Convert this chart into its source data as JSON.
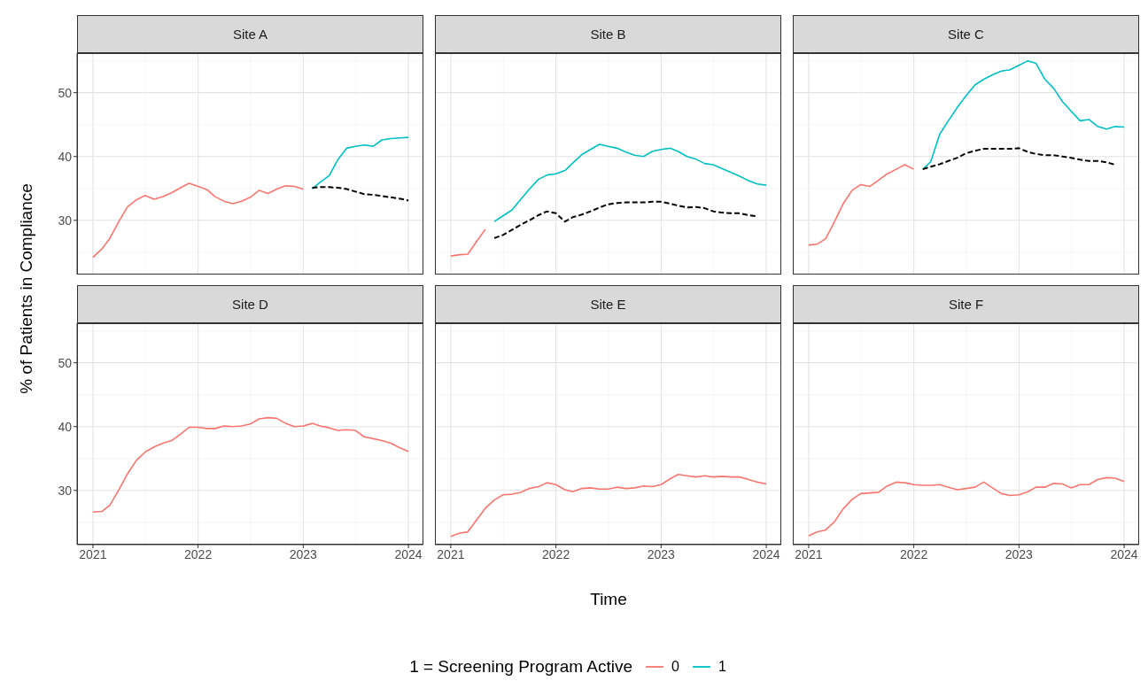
{
  "chart_data": [
    {
      "type": "line",
      "title": "Site A",
      "ylabel": "% of Patients in Compliance",
      "legend_title": "1 = Screening Program Active",
      "legend": "bottom",
      "grid": true,
      "tick_labels": "y",
      "xlim": [
        "2020-11-07",
        "2024-02-22"
      ],
      "xticks": [
        "2021",
        "2022",
        "2023",
        "2024"
      ],
      "ylim": [
        21.5,
        56.2
      ],
      "yticks": [
        30,
        40,
        50
      ],
      "series": [
        {
          "name": "0",
          "color": "#f8766d",
          "x": [
            "2021-01",
            "2021-02",
            "2021-03",
            "2021-04",
            "2021-05",
            "2021-06",
            "2021-07",
            "2021-08",
            "2021-09",
            "2021-10",
            "2021-11",
            "2021-12",
            "2022-01",
            "2022-02",
            "2022-03",
            "2022-04",
            "2022-05",
            "2022-06",
            "2022-07",
            "2022-08",
            "2022-09",
            "2022-10",
            "2022-11",
            "2022-12",
            "2023-01"
          ],
          "values": [
            24.2,
            25.5,
            27.2,
            29.8,
            32.1,
            33.2,
            33.9,
            33.3,
            33.7,
            34.3,
            35.1,
            35.8,
            35.3,
            34.8,
            33.7,
            33.0,
            32.6,
            33.0,
            33.6,
            34.7,
            34.2,
            34.9,
            35.4,
            35.3,
            34.9
          ]
        },
        {
          "name": "1",
          "color": "#00bfc4",
          "x": [
            "2023-02",
            "2023-03",
            "2023-04",
            "2023-05",
            "2023-06",
            "2023-07",
            "2023-08",
            "2023-09",
            "2023-10",
            "2023-11",
            "2023-12",
            "2024-01"
          ],
          "values": [
            34.9,
            36.0,
            37.0,
            39.5,
            41.3,
            41.6,
            41.8,
            41.6,
            42.6,
            42.8,
            42.9,
            43.0
          ]
        },
        {
          "color": "#000000",
          "line_style": "dashed",
          "x": [
            "2023-02",
            "2023-03",
            "2023-04",
            "2023-05",
            "2023-06",
            "2023-07",
            "2023-08",
            "2023-09",
            "2023-10",
            "2023-11",
            "2023-12",
            "2024-01"
          ],
          "values": [
            35.1,
            35.2,
            35.2,
            35.1,
            34.9,
            34.5,
            34.1,
            34.0,
            33.8,
            33.6,
            33.4,
            33.1
          ]
        }
      ]
    },
    {
      "type": "line",
      "title": "Site B",
      "grid": true,
      "tick_labels": false,
      "xlim": [
        "2020-11-07",
        "2024-02-22"
      ],
      "xticks": [
        "2021",
        "2022",
        "2023",
        "2024"
      ],
      "ylim": [
        21.5,
        56.2
      ],
      "yticks": [
        30,
        40,
        50
      ],
      "series": [
        {
          "name": "0",
          "color": "#f8766d",
          "x": [
            "2021-01",
            "2021-02",
            "2021-03",
            "2021-04",
            "2021-05"
          ],
          "values": [
            24.4,
            24.6,
            24.7,
            26.7,
            28.6
          ]
        },
        {
          "name": "1",
          "color": "#00bfc4",
          "x": [
            "2021-06",
            "2021-07",
            "2021-08",
            "2021-09",
            "2021-10",
            "2021-11",
            "2021-12",
            "2022-01",
            "2022-02",
            "2022-03",
            "2022-04",
            "2022-05",
            "2022-06",
            "2022-07",
            "2022-08",
            "2022-09",
            "2022-10",
            "2022-11",
            "2022-12",
            "2023-01",
            "2023-02",
            "2023-03",
            "2023-04",
            "2023-05",
            "2023-06",
            "2023-07",
            "2023-08",
            "2023-09",
            "2023-10",
            "2023-11",
            "2023-12",
            "2024-01"
          ],
          "values": [
            29.8,
            30.7,
            31.6,
            33.3,
            34.9,
            36.4,
            37.1,
            37.3,
            37.8,
            39.0,
            40.3,
            41.1,
            41.9,
            41.6,
            41.3,
            40.7,
            40.2,
            40.0,
            40.8,
            41.1,
            41.3,
            40.8,
            40.0,
            39.6,
            38.9,
            38.7,
            38.1,
            37.5,
            36.9,
            36.2,
            35.7,
            35.5
          ]
        },
        {
          "color": "#000000",
          "line_style": "dashed",
          "x": [
            "2021-06",
            "2021-07",
            "2021-08",
            "2021-09",
            "2021-10",
            "2021-11",
            "2021-12",
            "2022-01",
            "2022-02",
            "2022-03",
            "2022-04",
            "2022-05",
            "2022-06",
            "2022-07",
            "2022-08",
            "2022-09",
            "2022-10",
            "2022-11",
            "2022-12",
            "2023-01",
            "2023-02",
            "2023-03",
            "2023-04",
            "2023-05",
            "2023-06",
            "2023-07",
            "2023-08",
            "2023-09",
            "2023-10",
            "2023-11",
            "2023-12"
          ],
          "values": [
            27.2,
            27.7,
            28.5,
            29.3,
            30.0,
            30.8,
            31.4,
            31.1,
            29.8,
            30.5,
            30.9,
            31.4,
            32.0,
            32.5,
            32.7,
            32.8,
            32.8,
            32.8,
            32.9,
            32.9,
            32.6,
            32.3,
            32.0,
            32.1,
            31.9,
            31.4,
            31.2,
            31.1,
            31.1,
            30.8,
            30.6
          ]
        }
      ]
    },
    {
      "type": "line",
      "title": "Site C",
      "grid": true,
      "tick_labels": false,
      "xlim": [
        "2020-11-07",
        "2024-02-22"
      ],
      "xticks": [
        "2021",
        "2022",
        "2023",
        "2024"
      ],
      "ylim": [
        21.5,
        56.2
      ],
      "yticks": [
        30,
        40,
        50
      ],
      "series": [
        {
          "name": "0",
          "color": "#f8766d",
          "x": [
            "2021-01",
            "2021-02",
            "2021-03",
            "2021-04",
            "2021-05",
            "2021-06",
            "2021-07",
            "2021-08",
            "2021-09",
            "2021-10",
            "2021-11",
            "2021-12",
            "2022-01"
          ],
          "values": [
            26.1,
            26.3,
            27.1,
            29.8,
            32.6,
            34.7,
            35.6,
            35.3,
            36.3,
            37.3,
            38.0,
            38.7,
            38.0
          ]
        },
        {
          "name": "1",
          "color": "#00bfc4",
          "x": [
            "2022-02",
            "2022-03",
            "2022-04",
            "2022-05",
            "2022-06",
            "2022-07",
            "2022-08",
            "2022-09",
            "2022-10",
            "2022-11",
            "2022-12",
            "2023-01",
            "2023-02",
            "2023-03",
            "2023-04",
            "2023-05",
            "2023-06",
            "2023-07",
            "2023-08",
            "2023-09",
            "2023-10",
            "2023-11",
            "2023-12",
            "2024-01"
          ],
          "values": [
            38.0,
            39.2,
            43.5,
            45.6,
            47.7,
            49.5,
            51.2,
            52.1,
            52.8,
            53.4,
            53.6,
            54.3,
            55.0,
            54.6,
            52.1,
            50.7,
            48.6,
            47.1,
            45.6,
            45.8,
            44.7,
            44.3,
            44.7,
            44.6
          ]
        },
        {
          "color": "#000000",
          "line_style": "dashed",
          "x": [
            "2022-02",
            "2022-03",
            "2022-04",
            "2022-05",
            "2022-06",
            "2022-07",
            "2022-08",
            "2022-09",
            "2022-10",
            "2022-11",
            "2022-12",
            "2023-01",
            "2023-02",
            "2023-03",
            "2023-04",
            "2023-05",
            "2023-06",
            "2023-07",
            "2023-08",
            "2023-09",
            "2023-10",
            "2023-11",
            "2023-12"
          ],
          "values": [
            38.0,
            38.4,
            38.8,
            39.3,
            39.8,
            40.5,
            40.9,
            41.2,
            41.2,
            41.2,
            41.2,
            41.3,
            40.7,
            40.4,
            40.2,
            40.2,
            40.0,
            39.8,
            39.5,
            39.3,
            39.3,
            39.1,
            38.7
          ]
        }
      ]
    },
    {
      "type": "line",
      "title": "Site D",
      "grid": true,
      "xlim": [
        "2020-11-07",
        "2024-02-22"
      ],
      "xticks": [
        "2021",
        "2022",
        "2023",
        "2024"
      ],
      "ylim": [
        21.5,
        56.2
      ],
      "yticks": [
        30,
        40,
        50
      ],
      "x": [
        "2021-01",
        "2021-02",
        "2021-03",
        "2021-04",
        "2021-05",
        "2021-06",
        "2021-07",
        "2021-08",
        "2021-09",
        "2021-10",
        "2021-11",
        "2021-12",
        "2022-01",
        "2022-02",
        "2022-03",
        "2022-04",
        "2022-05",
        "2022-06",
        "2022-07",
        "2022-08",
        "2022-09",
        "2022-10",
        "2022-11",
        "2022-12",
        "2023-01",
        "2023-02",
        "2023-03",
        "2023-04",
        "2023-05",
        "2023-06",
        "2023-07",
        "2023-08",
        "2023-09",
        "2023-10",
        "2023-11",
        "2023-12",
        "2024-01"
      ],
      "series": [
        {
          "name": "0",
          "color": "#f8766d",
          "values": [
            26.6,
            26.7,
            27.7,
            30.1,
            32.6,
            34.7,
            36.0,
            36.8,
            37.4,
            37.8,
            38.8,
            39.9,
            39.9,
            39.7,
            39.7,
            40.1,
            40.0,
            40.1,
            40.4,
            41.2,
            41.4,
            41.3,
            40.5,
            40.0,
            40.1,
            40.5,
            40.1,
            39.8,
            39.4,
            39.5,
            39.4,
            38.4,
            38.1,
            37.8,
            37.4,
            36.7,
            36.1
          ]
        }
      ]
    },
    {
      "type": "line",
      "title": "Site E",
      "xlabel": "Time",
      "grid": true,
      "tick_labels": "x",
      "xlim": [
        "2020-11-07",
        "2024-02-22"
      ],
      "xticks": [
        "2021",
        "2022",
        "2023",
        "2024"
      ],
      "ylim": [
        21.5,
        56.2
      ],
      "yticks": [
        30,
        40,
        50
      ],
      "x": [
        "2021-01",
        "2021-02",
        "2021-03",
        "2021-04",
        "2021-05",
        "2021-06",
        "2021-07",
        "2021-08",
        "2021-09",
        "2021-10",
        "2021-11",
        "2021-12",
        "2022-01",
        "2022-02",
        "2022-03",
        "2022-04",
        "2022-05",
        "2022-06",
        "2022-07",
        "2022-08",
        "2022-09",
        "2022-10",
        "2022-11",
        "2022-12",
        "2023-01",
        "2023-02",
        "2023-03",
        "2023-04",
        "2023-05",
        "2023-06",
        "2023-07",
        "2023-08",
        "2023-09",
        "2023-10",
        "2023-11",
        "2023-12",
        "2024-01"
      ],
      "series": [
        {
          "name": "0",
          "color": "#f8766d",
          "values": [
            22.8,
            23.3,
            23.5,
            25.4,
            27.2,
            28.5,
            29.3,
            29.4,
            29.7,
            30.3,
            30.6,
            31.2,
            30.9,
            30.1,
            29.8,
            30.3,
            30.4,
            30.2,
            30.2,
            30.5,
            30.3,
            30.4,
            30.7,
            30.6,
            30.9,
            31.8,
            32.5,
            32.3,
            32.1,
            32.3,
            32.1,
            32.2,
            32.1,
            32.1,
            31.7,
            31.3,
            31.0
          ]
        }
      ]
    },
    {
      "type": "line",
      "title": "Site F",
      "grid": true,
      "tick_labels": "x",
      "xlim": [
        "2020-11-07",
        "2024-02-22"
      ],
      "xticks": [
        "2021",
        "2022",
        "2023",
        "2024"
      ],
      "ylim": [
        21.5,
        56.2
      ],
      "yticks": [
        30,
        40,
        50
      ],
      "x": [
        "2021-01",
        "2021-02",
        "2021-03",
        "2021-04",
        "2021-05",
        "2021-06",
        "2021-07",
        "2021-08",
        "2021-09",
        "2021-10",
        "2021-11",
        "2021-12",
        "2022-01",
        "2022-02",
        "2022-03",
        "2022-04",
        "2022-05",
        "2022-06",
        "2022-07",
        "2022-08",
        "2022-09",
        "2022-10",
        "2022-11",
        "2022-12",
        "2023-01",
        "2023-02",
        "2023-03",
        "2023-04",
        "2023-05",
        "2023-06",
        "2023-07",
        "2023-08",
        "2023-09",
        "2023-10",
        "2023-11",
        "2023-12",
        "2024-01"
      ],
      "series": [
        {
          "name": "0",
          "color": "#f8766d",
          "values": [
            22.9,
            23.5,
            23.8,
            25.1,
            27.1,
            28.6,
            29.5,
            29.6,
            29.7,
            30.7,
            31.3,
            31.2,
            30.9,
            30.8,
            30.8,
            30.9,
            30.5,
            30.1,
            30.3,
            30.5,
            31.3,
            30.4,
            29.5,
            29.2,
            29.3,
            29.8,
            30.5,
            30.5,
            31.1,
            31.0,
            30.4,
            30.9,
            30.9,
            31.7,
            32.0,
            31.9,
            31.4
          ]
        }
      ]
    }
  ]
}
